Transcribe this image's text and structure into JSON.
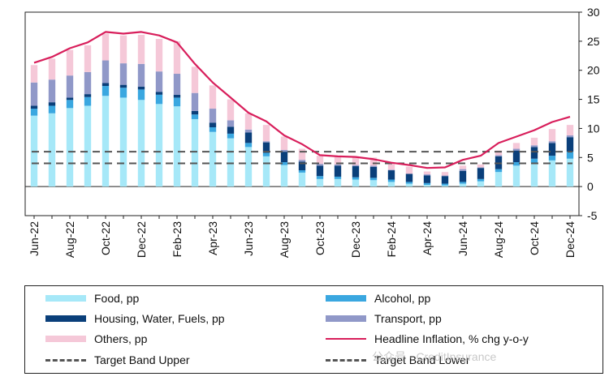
{
  "chart_data": {
    "type": "bar",
    "stacked": true,
    "categories": [
      "Jun-22",
      "Jul-22",
      "Aug-22",
      "Sep-22",
      "Oct-22",
      "Nov-22",
      "Dec-22",
      "Jan-23",
      "Feb-23",
      "Mar-23",
      "Apr-23",
      "May-23",
      "Jun-23",
      "Jul-23",
      "Aug-23",
      "Sep-23",
      "Oct-23",
      "Nov-23",
      "Dec-23",
      "Jan-24",
      "Feb-24",
      "Mar-24",
      "Apr-24",
      "May-24",
      "Jun-24",
      "Jul-24",
      "Aug-24",
      "Sep-24",
      "Oct-24",
      "Nov-24",
      "Dec-24"
    ],
    "x_tick_labels": [
      "Jun-22",
      "Aug-22",
      "Oct-22",
      "Dec-22",
      "Feb-23",
      "Apr-23",
      "Jun-23",
      "Aug-23",
      "Oct-23",
      "Dec-23",
      "Feb-24",
      "Apr-24",
      "Jun-24",
      "Aug-24",
      "Oct-24",
      "Dec-24"
    ],
    "series": [
      {
        "name": "Food, pp",
        "type": "bar",
        "color": "#a6e8f8",
        "values": [
          12.2,
          12.6,
          13.5,
          13.9,
          15.6,
          15.3,
          14.9,
          14.2,
          13.8,
          11.6,
          9.4,
          8.3,
          6.8,
          5.2,
          3.7,
          2.4,
          1.3,
          1.3,
          1.2,
          1.1,
          0.8,
          0.5,
          0.3,
          0.2,
          0.5,
          0.9,
          2.5,
          3.6,
          4.1,
          4.5,
          4.8
        ]
      },
      {
        "name": "Alcohol, pp",
        "type": "bar",
        "color": "#3aa7e0",
        "values": [
          1.2,
          1.3,
          1.4,
          1.5,
          1.7,
          1.7,
          1.8,
          1.6,
          1.5,
          0.8,
          0.8,
          0.8,
          0.7,
          0.6,
          0.5,
          0.4,
          0.5,
          0.4,
          0.4,
          0.4,
          0.4,
          0.3,
          0.3,
          0.3,
          0.3,
          0.4,
          0.5,
          0.6,
          0.7,
          0.8,
          1.2
        ]
      },
      {
        "name": "Housing, Water, Fuels, pp",
        "type": "bar",
        "color": "#0a3f7a",
        "values": [
          0.5,
          0.6,
          0.4,
          0.5,
          0.5,
          0.5,
          0.5,
          0.5,
          0.5,
          0.6,
          0.8,
          1.2,
          1.8,
          1.8,
          1.8,
          1.5,
          1.8,
          1.9,
          1.9,
          1.9,
          1.6,
          1.4,
          1.3,
          1.3,
          1.9,
          1.9,
          2.2,
          2.0,
          2.0,
          2.2,
          2.5
        ]
      },
      {
        "name": "Transport, pp",
        "type": "bar",
        "color": "#9098c8",
        "values": [
          4.0,
          3.9,
          3.8,
          3.8,
          3.9,
          3.7,
          3.9,
          3.5,
          3.6,
          3.1,
          2.4,
          1.1,
          0.5,
          0.2,
          0.3,
          0.3,
          0.3,
          0.2,
          0.2,
          0.2,
          0.1,
          0.0,
          0.2,
          0.1,
          0.3,
          0.1,
          0.2,
          0.3,
          0.3,
          0.3,
          0.3
        ]
      },
      {
        "name": "Others, pp",
        "type": "bar",
        "color": "#f5c8d8",
        "values": [
          3.0,
          3.6,
          4.4,
          4.6,
          4.6,
          4.8,
          5.0,
          5.6,
          5.6,
          4.5,
          4.0,
          3.6,
          2.8,
          2.8,
          2.3,
          1.9,
          1.4,
          1.4,
          1.5,
          1.4,
          1.2,
          1.2,
          0.5,
          0.6,
          0.6,
          0.5,
          0.8,
          1.0,
          1.3,
          2.1,
          1.8
        ]
      },
      {
        "name": "Headline Inflation, % chg y-o-y",
        "type": "line",
        "color": "#d81e5b",
        "values": [
          21.3,
          22.3,
          23.8,
          24.8,
          26.6,
          26.3,
          26.6,
          26.0,
          24.8,
          21.1,
          17.9,
          15.3,
          12.7,
          11.2,
          8.8,
          7.3,
          5.4,
          5.2,
          5.1,
          4.7,
          4.1,
          3.7,
          3.2,
          3.3,
          4.6,
          5.3,
          7.5,
          8.6,
          9.7,
          11.1,
          12.0
        ]
      },
      {
        "name": "Target Band Upper",
        "type": "line",
        "color": "#555555",
        "dash": true,
        "value": 6
      },
      {
        "name": "Target Band Lower",
        "type": "line",
        "color": "#555555",
        "dash": true,
        "value": 4
      }
    ],
    "yticks": [
      -5,
      0,
      5,
      10,
      15,
      20,
      25,
      30
    ],
    "ylim": [
      -5,
      30
    ],
    "yaxis_position": "right",
    "title": "",
    "xlabel": "",
    "ylabel": "",
    "legend_position": "bottom"
  },
  "legend": {
    "food": "Food, pp",
    "alcohol": "Alcohol, pp",
    "housing": "Housing, Water, Fuels, pp",
    "transport": "Transport, pp",
    "others": "Others, pp",
    "headline": "Headline  Inflation,  % chg y-o-y",
    "band_upper": "Target Band Upper",
    "band_lower": "Target Band Lower"
  },
  "watermark": "公众号 · CreditInsurance"
}
